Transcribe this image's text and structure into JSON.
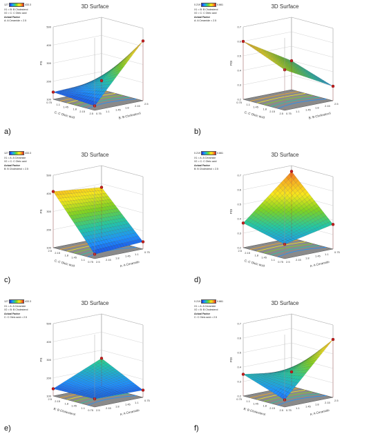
{
  "panels": [
    {
      "id": "a",
      "label": "a)",
      "title": "3D Surface",
      "legend": {
        "min": "127",
        "max": "433.3",
        "x1": "X1 = B: B Cholesterol",
        "x2": "X2 = C: C Oleic acid",
        "actual_factor_heading": "Actual Factor",
        "actual_factor": "A: A Ceramide = 2.5"
      },
      "y_axis": {
        "label": "PS",
        "ticks": [
          "100",
          "200",
          "300",
          "400",
          "500"
        ]
      },
      "left_axis": {
        "label": "C: C Oleic acid",
        "ticks": [
          "2.5",
          "2.15",
          "1.8",
          "1.45",
          "1.1",
          "0.75"
        ]
      },
      "right_axis": {
        "label": "B: B Cholesterol",
        "ticks": [
          "0.75",
          "1.1",
          "1.45",
          "1.8",
          "2.15",
          "2.5"
        ]
      }
    },
    {
      "id": "b",
      "label": "b)",
      "title": "3D Surface",
      "legend": {
        "min": "0.219",
        "max": "0.661",
        "x1": "X1 = B: B Cholesterol",
        "x2": "X2 = C: C Oleic acid",
        "actual_factor_heading": "Actual Factor",
        "actual_factor": "A: A Ceramide = 2.5"
      },
      "y_axis": {
        "label": "PDI",
        "ticks": [
          "0.2",
          "0.3",
          "0.4",
          "0.5",
          "0.6",
          "0.7"
        ]
      },
      "left_axis": {
        "label": "C: C Oleic acid",
        "ticks": [
          "2.5",
          "2.15",
          "1.8",
          "1.45",
          "1.1",
          "0.75"
        ]
      },
      "right_axis": {
        "label": "B: B Cholesterol",
        "ticks": [
          "0.75",
          "1.1",
          "1.45",
          "1.8",
          "2.15",
          "2.5"
        ]
      }
    },
    {
      "id": "c",
      "label": "c)",
      "title": "3D Surface",
      "legend": {
        "min": "127",
        "max": "433.3",
        "x1": "X1 = A: A Ceramide",
        "x2": "X2 = C: C Oleic acid",
        "actual_factor_heading": "Actual Factor",
        "actual_factor": "B: B Cholesterol = 2.5"
      },
      "y_axis": {
        "label": "PS",
        "ticks": [
          "100",
          "200",
          "300",
          "400",
          "500"
        ]
      },
      "left_axis": {
        "label": "C: C Oleic acid",
        "ticks": [
          "0.75",
          "1.1",
          "1.45",
          "1.8",
          "2.15",
          "2.5"
        ]
      },
      "right_axis": {
        "label": "A: A Ceramide",
        "ticks": [
          "2.5",
          "2.15",
          "1.8",
          "1.45",
          "1.1",
          "0.75"
        ]
      }
    },
    {
      "id": "d",
      "label": "d)",
      "title": "3D Surface",
      "legend": {
        "min": "0.219",
        "max": "0.661",
        "x1": "X1 = A: A Ceramide",
        "x2": "X2 = C: C Oleic acid",
        "actual_factor_heading": "Actual Factor",
        "actual_factor": "B: B Cholesterol = 2.5"
      },
      "y_axis": {
        "label": "PDI",
        "ticks": [
          "0.2",
          "0.3",
          "0.4",
          "0.5",
          "0.6",
          "0.7"
        ]
      },
      "left_axis": {
        "label": "C: C Oleic acid",
        "ticks": [
          "0.75",
          "1.1",
          "1.45",
          "1.8",
          "2.15",
          "2.5"
        ]
      },
      "right_axis": {
        "label": "A: A Ceramide",
        "ticks": [
          "2.5",
          "2.15",
          "1.8",
          "1.45",
          "1.1",
          "0.75"
        ]
      }
    },
    {
      "id": "e",
      "label": "e)",
      "title": "3D Surface",
      "legend": {
        "min": "127",
        "max": "433.3",
        "x1": "X1 = A: A Ceramide",
        "x2": "X2 = B: B Cholesterol",
        "actual_factor_heading": "Actual Factor",
        "actual_factor": "C: C Oleic acid = 2.5"
      },
      "y_axis": {
        "label": "PS",
        "ticks": [
          "100",
          "200",
          "300",
          "400",
          "500"
        ]
      },
      "left_axis": {
        "label": "B: B Cholesterol",
        "ticks": [
          "0.75",
          "1.1",
          "1.45",
          "1.8",
          "2.15",
          "2.5"
        ]
      },
      "right_axis": {
        "label": "A: A Ceramide",
        "ticks": [
          "2.5",
          "2.15",
          "1.8",
          "1.45",
          "1.1",
          "0.75"
        ]
      }
    },
    {
      "id": "f",
      "label": "f)",
      "title": "3D Surface",
      "legend": {
        "min": "0.219",
        "max": "0.661",
        "x1": "X1 = A: A Ceramide",
        "x2": "X2 = B: B Cholesterol",
        "actual_factor_heading": "Actual Factor",
        "actual_factor": "C: C Oleic acid = 2.5"
      },
      "y_axis": {
        "label": "PDI",
        "ticks": [
          "0.2",
          "0.3",
          "0.4",
          "0.5",
          "0.6",
          "0.7"
        ]
      },
      "left_axis": {
        "label": "B: B Cholesterol",
        "ticks": [
          "2.5",
          "2.15",
          "1.8",
          "1.45",
          "1.1",
          "0.75"
        ]
      },
      "right_axis": {
        "label": "A: A Ceramide",
        "ticks": [
          "0.75",
          "1.1",
          "1.45",
          "1.8",
          "2.15",
          "2.5"
        ]
      }
    }
  ],
  "chart_data": [
    {
      "type": "surface",
      "panel": "a)",
      "title": "3D Surface",
      "zlabel": "PS",
      "zlim": [
        100,
        500
      ],
      "left_label": "C: C Oleic acid",
      "right_label": "B: B Cholesterol",
      "left_range": [
        0.75,
        2.5
      ],
      "right_range": [
        0.75,
        2.5
      ],
      "corner_values": {
        "left": 140,
        "front": 125,
        "back": 150,
        "right": 430
      },
      "design_points": [
        140,
        125,
        175,
        430
      ]
    },
    {
      "type": "surface",
      "panel": "b)",
      "title": "3D Surface",
      "zlabel": "PDI",
      "zlim": [
        0.2,
        0.7
      ],
      "left_label": "C: C Oleic acid",
      "right_label": "B: B Cholesterol",
      "left_range": [
        0.75,
        2.5
      ],
      "right_range": [
        0.75,
        2.5
      ],
      "corner_values": {
        "left": 0.6,
        "front": 0.48,
        "back": 0.4,
        "right": 0.3
      },
      "design_points": [
        0.6,
        0.3
      ]
    },
    {
      "type": "surface",
      "panel": "c)",
      "title": "3D Surface",
      "zlabel": "PS",
      "zlim": [
        100,
        500
      ],
      "left_label": "C: C Oleic acid",
      "right_label": "A: A Ceramide",
      "left_range": [
        0.75,
        2.5
      ],
      "right_range": [
        0.75,
        2.5
      ],
      "corner_values": {
        "left": 410,
        "front": 125,
        "back": 380,
        "right": 140
      },
      "design_points": [
        410,
        380,
        125,
        140
      ]
    },
    {
      "type": "surface",
      "panel": "d)",
      "title": "3D Surface",
      "zlabel": "PDI",
      "zlim": [
        0.2,
        0.7
      ],
      "left_label": "C: C Oleic acid",
      "right_label": "A: A Ceramide",
      "left_range": [
        0.75,
        2.5
      ],
      "right_range": [
        0.75,
        2.5
      ],
      "corner_values": {
        "left": 0.37,
        "front": 0.3,
        "back": 0.66,
        "right": 0.37
      },
      "design_points": [
        0.66,
        0.3
      ]
    },
    {
      "type": "surface",
      "panel": "e)",
      "title": "3D Surface",
      "zlabel": "PS",
      "zlim": [
        100,
        500
      ],
      "left_label": "B: B Cholesterol",
      "right_label": "A: A Ceramide",
      "left_range": [
        0.75,
        2.5
      ],
      "right_range": [
        0.75,
        2.5
      ],
      "corner_values": {
        "left": 140,
        "front": 145,
        "back": 255,
        "right": 140
      },
      "design_points": [
        140,
        255,
        145,
        140
      ]
    },
    {
      "type": "surface",
      "panel": "f)",
      "title": "3D Surface",
      "zlabel": "PDI",
      "zlim": [
        0.2,
        0.7
      ],
      "left_label": "B: B Cholesterol",
      "right_label": "A: A Ceramide",
      "left_range": [
        0.75,
        2.5
      ],
      "right_range": [
        0.75,
        2.5
      ],
      "corner_values": {
        "left": 0.35,
        "front": 0.25,
        "back": 0.3,
        "right": 0.6
      },
      "design_points": [
        0.35,
        0.25,
        0.6
      ]
    }
  ]
}
